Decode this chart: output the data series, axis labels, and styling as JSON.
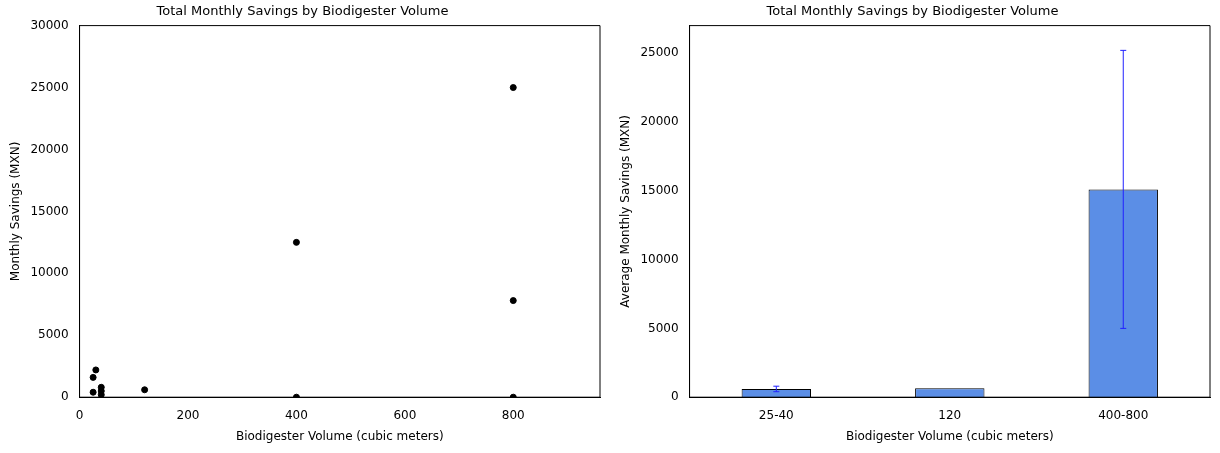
{
  "chart_data": [
    {
      "type": "scatter",
      "title": "Total Monthly Savings by Biodigester Volume",
      "xlabel": "Biodigester Volume (cubic meters)",
      "ylabel": "Monthly Savings (MXN)",
      "xlim": [
        0,
        960
      ],
      "xticks": [
        0,
        200,
        400,
        600,
        800
      ],
      "ylim": [
        0,
        30000
      ],
      "yticks": [
        0,
        5000,
        10000,
        15000,
        20000,
        25000,
        30000
      ],
      "grid": false,
      "legend": false,
      "marker": "circle",
      "series": [
        {
          "color": "#000000",
          "x": [
            25,
            25,
            30,
            40,
            40,
            40,
            120,
            400,
            400,
            800,
            800,
            800
          ],
          "values": [
            1600,
            400,
            2200,
            800,
            500,
            200,
            600,
            12500,
            0,
            25000,
            7800,
            0
          ]
        }
      ]
    },
    {
      "type": "bar",
      "title": "Total Monthly Savings by Biodigester Volume",
      "xlabel": "Biodigester Volume (cubic meters)",
      "ylabel": "Average Monthly Savings (MXN)",
      "categories": [
        "25-40",
        "120",
        "400-800"
      ],
      "ylim": [
        0,
        27000
      ],
      "yticks": [
        0,
        5000,
        10000,
        15000,
        20000,
        25000
      ],
      "grid": false,
      "legend": false,
      "series": [
        {
          "color": "#5b8ee6",
          "values": [
            600,
            650,
            15100
          ],
          "errors": [
            200,
            null,
            10100
          ]
        }
      ]
    }
  ]
}
